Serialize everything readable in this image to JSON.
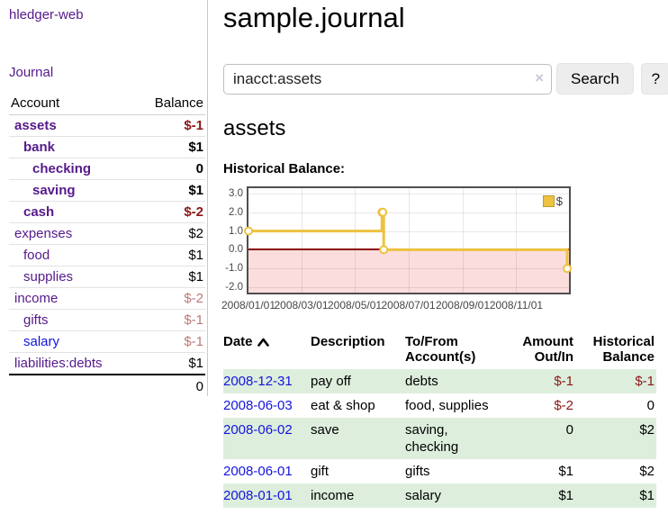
{
  "app": {
    "brand": "hledger-web",
    "nav_journal": "Journal"
  },
  "sidebar": {
    "col_account": "Account",
    "col_balance": "Balance",
    "accounts": [
      {
        "name": "assets",
        "balance": "$-1"
      },
      {
        "name": "bank",
        "balance": "$1"
      },
      {
        "name": "checking",
        "balance": "0"
      },
      {
        "name": "saving",
        "balance": "$1"
      },
      {
        "name": "cash",
        "balance": "$-2"
      },
      {
        "name": "expenses",
        "balance": "$2"
      },
      {
        "name": "food",
        "balance": "$1"
      },
      {
        "name": "supplies",
        "balance": "$1"
      },
      {
        "name": "income",
        "balance": "$-2"
      },
      {
        "name": "gifts",
        "balance": "$-1"
      },
      {
        "name": "salary",
        "balance": "$-1"
      },
      {
        "name": "liabilities:debts",
        "balance": "$1"
      }
    ],
    "total": "0"
  },
  "main": {
    "title": "sample.journal",
    "search": {
      "value": "inacct:assets",
      "clear_icon": "×",
      "button_label": "Search",
      "help_label": "?"
    },
    "account_heading": "assets",
    "chart_label": "Historical Balance:"
  },
  "chart_data": {
    "type": "line",
    "style": "step",
    "title": "Historical Balance",
    "series": [
      {
        "name": "$",
        "color": "#edc240",
        "points": [
          [
            "2008-01-01",
            1
          ],
          [
            "2008-06-01",
            2
          ],
          [
            "2008-06-02",
            2
          ],
          [
            "2008-06-03",
            0
          ],
          [
            "2008-12-31",
            -1
          ]
        ]
      }
    ],
    "x_range": [
      "2008-01-01",
      "2008-12-31"
    ],
    "ylim": [
      -2,
      3
    ],
    "y_ticks": [
      "3.0",
      "2.0",
      "1.0",
      "0.0",
      "-1.0",
      "-2.0"
    ],
    "x_ticks": [
      "2008/01/01",
      "2008/03/01",
      "2008/05/01",
      "2008/07/01",
      "2008/09/01",
      "2008/11/01"
    ],
    "legend": {
      "label": "$",
      "position": "top-right"
    },
    "negative_fill": "#fcdddd",
    "zero_line_color": "#8b0000",
    "grid": true
  },
  "register": {
    "headers": {
      "date": "Date",
      "description": "Description",
      "accounts_line1": "To/From",
      "accounts_line2": "Account(s)",
      "amount_line1": "Amount",
      "amount_line2": "Out/In",
      "balance_line1": "Historical",
      "balance_line2": "Balance"
    },
    "rows": [
      {
        "date": "2008-12-31",
        "description": "pay off",
        "accounts": "debts",
        "amount": "$-1",
        "balance": "$-1"
      },
      {
        "date": "2008-06-03",
        "description": "eat & shop",
        "accounts": "food, supplies",
        "amount": "$-2",
        "balance": "0"
      },
      {
        "date": "2008-06-02",
        "description": "save",
        "accounts": "saving, checking",
        "amount": "0",
        "balance": "$2"
      },
      {
        "date": "2008-06-01",
        "description": "gift",
        "accounts": "gifts",
        "amount": "$1",
        "balance": "$2"
      },
      {
        "date": "2008-01-01",
        "description": "income",
        "accounts": "salary",
        "amount": "$1",
        "balance": "$1"
      }
    ]
  },
  "colors": {
    "link_purple": "#551a8b",
    "link_blue": "#1414dd",
    "negative_strong": "#8b1717",
    "negative_soft": "#bd7878",
    "row_green": "#ddeedd",
    "series_gold": "#edc240"
  }
}
